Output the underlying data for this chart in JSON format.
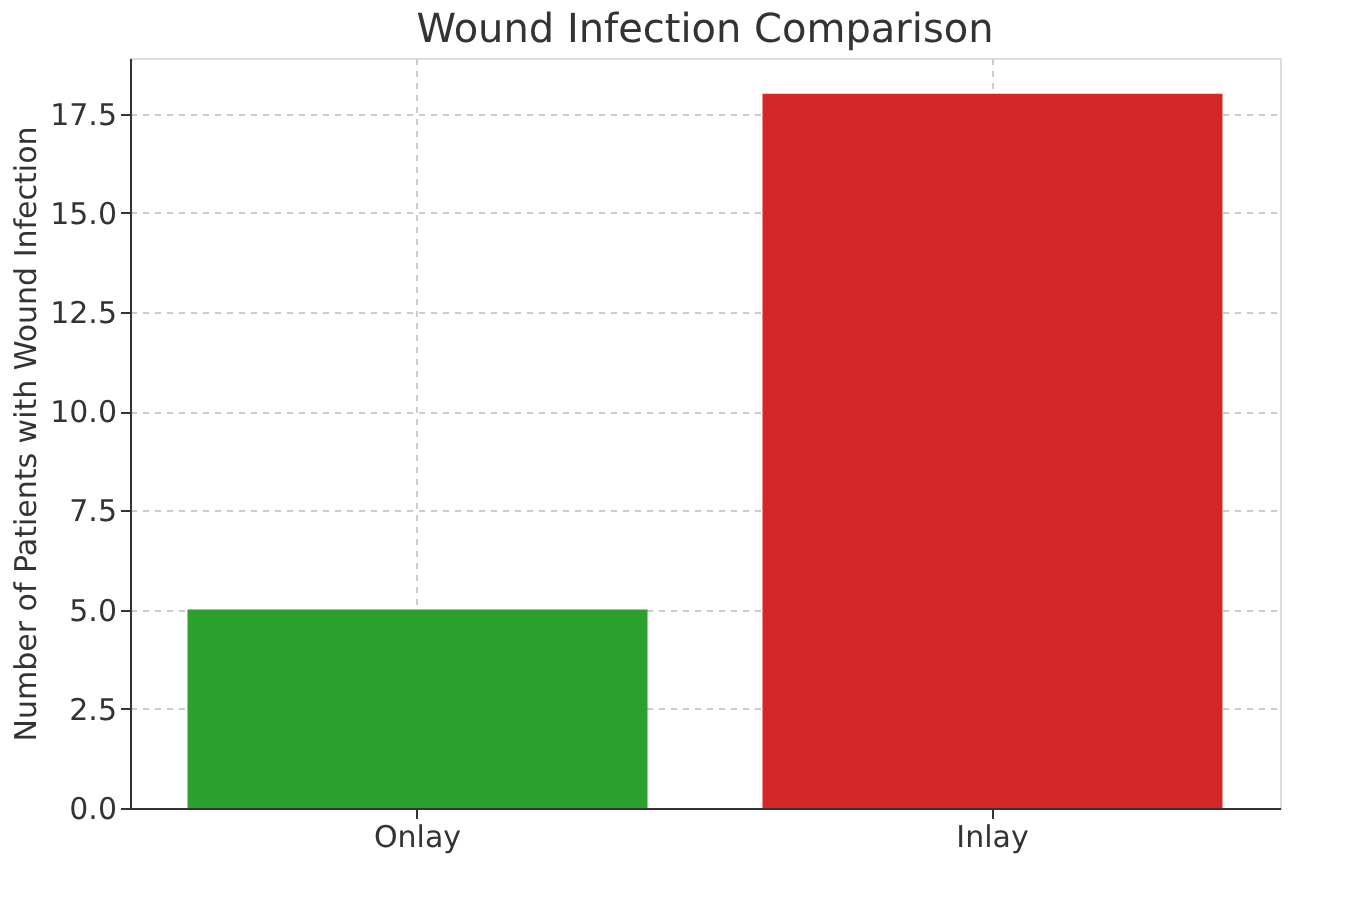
{
  "chart_data": {
    "type": "bar",
    "title": "Wound Infection Comparison",
    "ylabel": "Number of Patients with Wound Infection",
    "categories": [
      "Onlay",
      "Inlay"
    ],
    "values": [
      5,
      18
    ],
    "colors": [
      "#2ca02c",
      "#d62728"
    ],
    "ylim": [
      0,
      18.9
    ],
    "yticks": [
      {
        "value": 0,
        "label": "0.0"
      },
      {
        "value": 2.5,
        "label": "2.5"
      },
      {
        "value": 5,
        "label": "5.0"
      },
      {
        "value": 7.5,
        "label": "7.5"
      },
      {
        "value": 10,
        "label": "10.0"
      },
      {
        "value": 12.5,
        "label": "12.5"
      },
      {
        "value": 15,
        "label": "15.0"
      },
      {
        "value": 17.5,
        "label": "17.5"
      }
    ],
    "grid": true
  }
}
